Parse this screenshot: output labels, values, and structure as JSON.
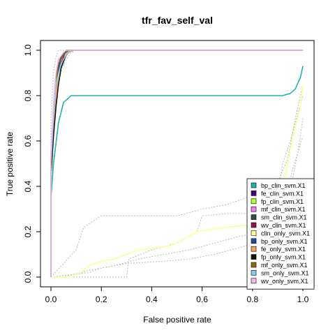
{
  "chart_data": {
    "type": "line",
    "title": "tfr_fav_self_val",
    "xlabel": "False positive rate",
    "ylabel": "True positive rate",
    "xlim": [
      0,
      1
    ],
    "ylim": [
      0,
      1
    ],
    "x_ticks": [
      0.0,
      0.2,
      0.4,
      0.6,
      0.8,
      1.0
    ],
    "y_ticks": [
      0.0,
      0.2,
      0.4,
      0.6,
      0.8,
      1.0
    ],
    "x_tick_labels": [
      "0.0",
      "0.2",
      "0.4",
      "0.6",
      "0.8",
      "1.0"
    ],
    "y_tick_labels": [
      "0.0",
      "0.2",
      "0.4",
      "0.6",
      "0.8",
      "1.0"
    ],
    "grid": false,
    "legend_position": "bottom-right",
    "series": [
      {
        "name": "bp_clin_svm.X1",
        "color": "#20b2aa",
        "x": [
          0,
          0,
          0.01,
          0.03,
          0.05,
          0.07,
          0.08,
          0.92,
          0.95,
          0.97,
          0.99,
          1.0
        ],
        "y": [
          0,
          0.35,
          0.5,
          0.68,
          0.77,
          0.79,
          0.8,
          0.8,
          0.81,
          0.83,
          0.88,
          0.93
        ]
      },
      {
        "name": "fe_clin_svm.X1",
        "color": "#4b0082",
        "x": [
          0,
          0,
          0.01,
          0.02,
          0.03,
          0.04,
          0.05,
          0.07,
          1.0
        ],
        "y": [
          0,
          0.5,
          0.68,
          0.82,
          0.92,
          0.96,
          0.99,
          1.0,
          1.0
        ]
      },
      {
        "name": "fp_clin_svm.X1",
        "color": "#adff2f",
        "x": [
          0,
          0,
          0.01,
          0.02,
          0.03,
          0.04,
          0.06,
          0.08,
          1.0
        ],
        "y": [
          0,
          0.52,
          0.72,
          0.86,
          0.93,
          0.97,
          0.99,
          1.0,
          1.0
        ]
      },
      {
        "name": "mf_clin_svm.X1",
        "color": "#ee82ee",
        "x": [
          0,
          0,
          0.01,
          0.02,
          0.03,
          0.05,
          0.07,
          1.0
        ],
        "y": [
          0,
          0.55,
          0.75,
          0.88,
          0.95,
          0.99,
          1.0,
          1.0
        ]
      },
      {
        "name": "sm_clin_svm.X1",
        "color": "#2f4f4f",
        "x": [
          0,
          0,
          0.01,
          0.02,
          0.03,
          0.04,
          0.06,
          1.0
        ],
        "y": [
          0,
          0.5,
          0.7,
          0.84,
          0.93,
          0.97,
          1.0,
          1.0
        ]
      },
      {
        "name": "wv_clin_svm.X1",
        "color": "#8b1a4a",
        "x": [
          0,
          0,
          0.01,
          0.02,
          0.03,
          0.05,
          0.06,
          1.0
        ],
        "y": [
          0,
          0.47,
          0.67,
          0.82,
          0.91,
          0.97,
          1.0,
          1.0
        ]
      },
      {
        "name": "clin_only_svm.X1",
        "color": "#ffff99",
        "x": [
          0,
          0.08,
          0.1,
          0.13,
          0.15,
          0.2,
          0.25,
          0.3,
          0.35,
          0.42,
          0.48,
          0.53,
          0.58,
          0.63,
          0.7,
          0.78,
          0.85,
          0.9,
          0.93,
          0.95,
          0.97,
          0.99,
          1.0
        ],
        "y": [
          0,
          0,
          0.01,
          0.03,
          0.05,
          0.07,
          0.08,
          0.1,
          0.12,
          0.13,
          0.14,
          0.17,
          0.2,
          0.21,
          0.22,
          0.23,
          0.26,
          0.34,
          0.45,
          0.56,
          0.66,
          0.75,
          0.85
        ]
      },
      {
        "name": "bp_only_svm.X1",
        "color": "#1f4e9c",
        "x": [
          0,
          0,
          0.01,
          0.02,
          0.03,
          0.04,
          0.05,
          0.06,
          1.0
        ],
        "y": [
          0,
          0.48,
          0.68,
          0.83,
          0.91,
          0.96,
          0.98,
          1.0,
          1.0
        ]
      },
      {
        "name": "fe_only_svm.X1",
        "color": "#f4a460",
        "x": [
          0,
          0,
          0.01,
          0.02,
          0.03,
          0.05,
          0.07,
          0.09,
          1.0
        ],
        "y": [
          0,
          0.45,
          0.65,
          0.8,
          0.9,
          0.96,
          0.99,
          1.0,
          1.0
        ]
      },
      {
        "name": "fp_only_svm.X1",
        "color": "#111111",
        "x": [
          0,
          0,
          0.01,
          0.02,
          0.03,
          0.04,
          0.06,
          0.08,
          1.0
        ],
        "y": [
          0,
          0.45,
          0.62,
          0.75,
          0.85,
          0.92,
          0.98,
          1.0,
          1.0
        ]
      },
      {
        "name": "mf_only_svm.X1",
        "color": "#8b6914",
        "x": [
          0,
          0,
          0.01,
          0.02,
          0.03,
          0.05,
          0.07,
          1.0
        ],
        "y": [
          0,
          0.52,
          0.72,
          0.86,
          0.94,
          0.98,
          1.0,
          1.0
        ]
      },
      {
        "name": "sm_only_svm.X1",
        "color": "#87ceeb",
        "x": [
          0,
          0,
          0.01,
          0.02,
          0.04,
          0.06,
          0.08,
          1.0
        ],
        "y": [
          0,
          0.5,
          0.7,
          0.85,
          0.94,
          0.98,
          1.0,
          1.0
        ]
      },
      {
        "name": "wv_only_svm.X1",
        "color": "#f5b8e8",
        "x": [
          0,
          0,
          0.01,
          0.02,
          0.03,
          0.05,
          0.06,
          1.0
        ],
        "y": [
          0,
          0.55,
          0.76,
          0.9,
          0.96,
          0.99,
          1.0,
          1.0
        ]
      }
    ],
    "reference_bands": [
      {
        "name": "",
        "color": "#bbbbbb",
        "x": [
          0,
          0.1,
          0.13,
          0.2,
          0.3,
          0.4,
          0.5,
          0.6,
          0.7,
          0.8,
          0.9,
          0.94,
          0.97,
          1.0
        ],
        "y": [
          0,
          0.12,
          0.22,
          0.27,
          0.27,
          0.27,
          0.27,
          0.3,
          0.32,
          0.36,
          0.42,
          0.52,
          0.7,
          0.85
        ]
      },
      {
        "name": "",
        "color": "#bbbbbb",
        "x": [
          0,
          0.05,
          0.15,
          0.25,
          0.35,
          0.45,
          0.55,
          0.65,
          0.75,
          0.85,
          0.9,
          0.95,
          0.98,
          1.0
        ],
        "y": [
          0,
          0,
          0.03,
          0.05,
          0.08,
          0.1,
          0.12,
          0.15,
          0.18,
          0.2,
          0.25,
          0.38,
          0.55,
          0.7
        ]
      },
      {
        "name": "",
        "color": "#bbbbbb",
        "x": [
          0,
          0.3,
          0.31,
          0.4,
          0.5,
          0.58,
          0.6,
          0.7,
          0.8,
          0.84,
          0.9,
          0.92,
          0.95,
          1.0
        ],
        "y": [
          0,
          0,
          0.08,
          0.12,
          0.15,
          0.2,
          0.27,
          0.28,
          0.28,
          0.36,
          0.36,
          0.5,
          0.6,
          0.8
        ]
      },
      {
        "name": "",
        "color": "#bbbbbb",
        "x": [
          0,
          0.15,
          0.2,
          0.3,
          0.45,
          0.55,
          0.65,
          0.78,
          0.85,
          0.9,
          0.93,
          0.96,
          1.0
        ],
        "y": [
          0,
          0.02,
          0.04,
          0.06,
          0.07,
          0.08,
          0.1,
          0.14,
          0.17,
          0.22,
          0.33,
          0.48,
          0.62
        ]
      },
      {
        "name": "",
        "color": "#bbbbbb",
        "x": [
          0,
          0,
          0.01,
          0.02,
          0.04,
          0.06,
          0.08,
          0.1
        ],
        "y": [
          0,
          0.4,
          0.6,
          0.8,
          0.9,
          0.96,
          0.99,
          1.0
        ]
      },
      {
        "name": "",
        "color": "#bbbbbb",
        "x": [
          0,
          0.0,
          0.01,
          0.02,
          0.03,
          1.0
        ],
        "y": [
          0,
          0.7,
          0.9,
          0.97,
          1.0,
          1.0
        ]
      }
    ]
  }
}
